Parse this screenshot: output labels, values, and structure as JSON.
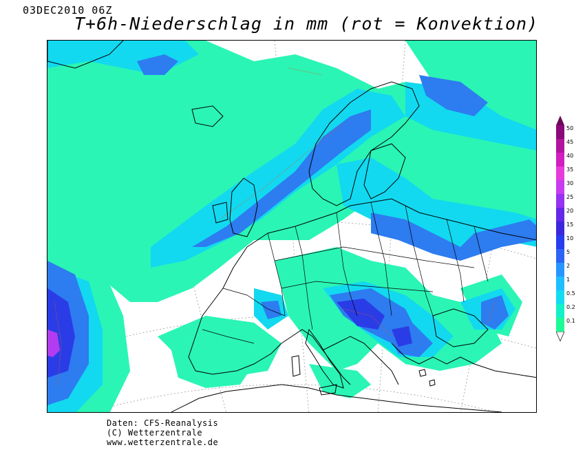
{
  "header": {
    "date": "03DEC2010 06Z",
    "title": "T+6h-Niederschlag in mm (rot = Konvektion)"
  },
  "credits": {
    "line1": "Daten: CFS-Reanalysis",
    "line2": "(C) Wetterzentrale",
    "line3": "www.wetterzentrale.de"
  },
  "legend": {
    "unit": "mm",
    "levels": [
      {
        "label": "50",
        "color": "#8a0a7a"
      },
      {
        "label": "45",
        "color": "#b214a0"
      },
      {
        "label": "40",
        "color": "#d21ec0"
      },
      {
        "label": "35",
        "color": "#e63cdc"
      },
      {
        "label": "30",
        "color": "#c83cf0"
      },
      {
        "label": "25",
        "color": "#9632f0"
      },
      {
        "label": "20",
        "color": "#6428e6"
      },
      {
        "label": "15",
        "color": "#3c28dc"
      },
      {
        "label": "10",
        "color": "#283cf0"
      },
      {
        "label": "5",
        "color": "#2d64f5"
      },
      {
        "label": "2",
        "color": "#2896ff"
      },
      {
        "label": "1",
        "color": "#1ebeff"
      },
      {
        "label": "0.5",
        "color": "#14dcf0"
      },
      {
        "label": "0.2",
        "color": "#14f0c8"
      },
      {
        "label": "0.1",
        "color": "#1efa96"
      }
    ]
  },
  "colors": {
    "light": "#2af5b4",
    "mid": "#12d9ef",
    "cyan": "#1ebeff",
    "blue": "#2d7cf0",
    "dark": "#2a3ce6",
    "purple": "#b43cf0",
    "convection": "#e05a2a",
    "coast": "#000000",
    "grid": "#9a9a9a"
  }
}
